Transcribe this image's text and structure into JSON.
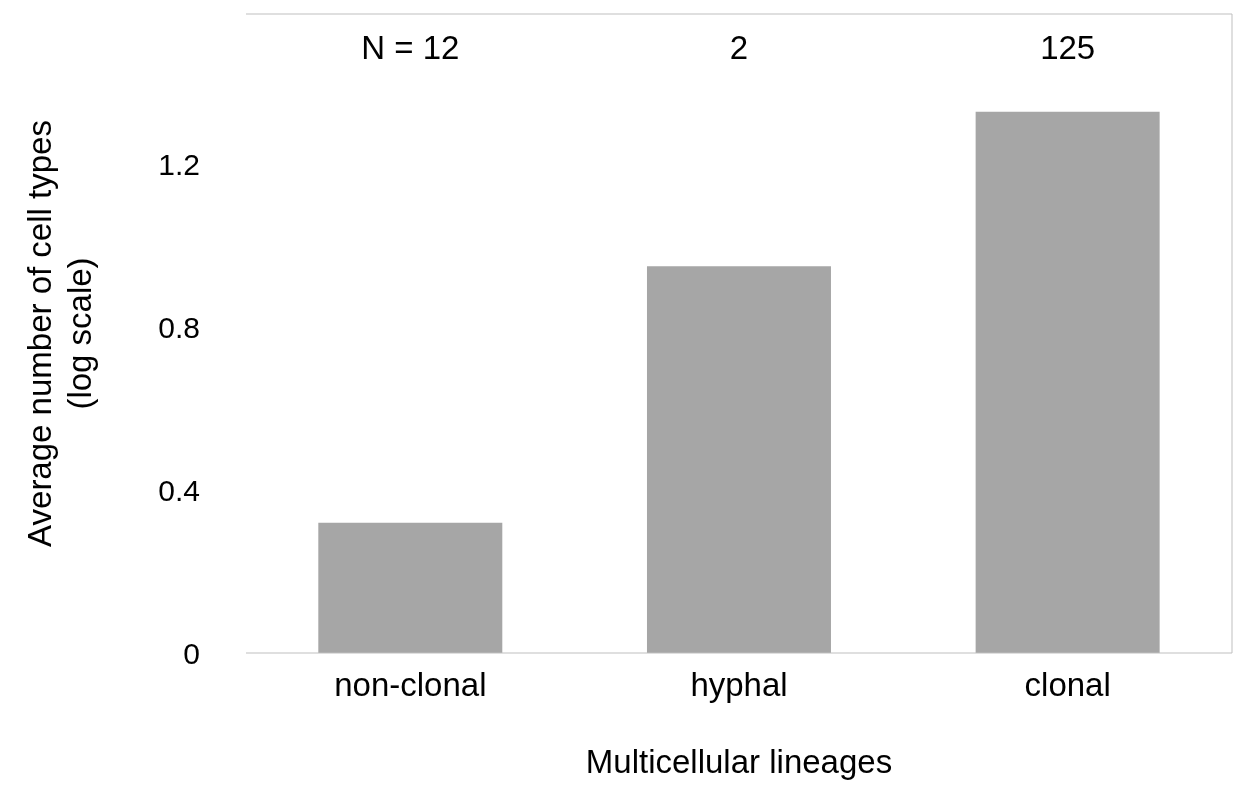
{
  "chart_data": {
    "type": "bar",
    "xlabel": "Multicellular lineages",
    "ylabel": "Average number of cell types\n(log scale)",
    "categories": [
      "non-clonal",
      "hyphal",
      "clonal"
    ],
    "values": [
      0.32,
      0.95,
      1.33
    ],
    "color": "#a6a6a6",
    "ylim": [
      0,
      1.57
    ],
    "yticks": [
      0,
      0.4,
      0.8,
      1.2
    ],
    "grid": false,
    "annotations": [
      "N = 12",
      "2",
      "125"
    ]
  }
}
